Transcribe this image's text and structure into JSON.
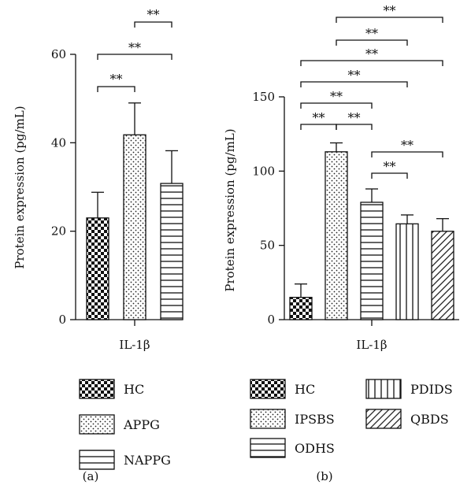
{
  "chart_data": [
    {
      "panel": "(a)",
      "type": "bar",
      "categories": [
        "HC",
        "APPG",
        "NAPPG"
      ],
      "values": [
        23,
        41.8,
        30.8
      ],
      "errors": [
        5.8,
        7.2,
        7.4
      ],
      "patterns": [
        "checker",
        "dots",
        "hlines"
      ],
      "ylim": [
        0,
        60
      ],
      "yticks": [
        0,
        20,
        40,
        60
      ],
      "ylabel": "Protein expression (pg/mL)",
      "xlabel": "IL-1β",
      "significance": [
        {
          "from": 0,
          "to": 1,
          "label": "**"
        },
        {
          "from": 0,
          "to": 2,
          "label": "**"
        },
        {
          "from": 1,
          "to": 2,
          "label": "**"
        }
      ],
      "legend": [
        "HC",
        "APPG",
        "NAPPG"
      ],
      "legend_placement": "below"
    },
    {
      "panel": "(b)",
      "type": "bar",
      "categories": [
        "HC",
        "IPSBS",
        "ODHS",
        "PDIDS",
        "QBDS"
      ],
      "values": [
        15,
        113,
        79,
        64.5,
        59.5
      ],
      "errors": [
        9,
        6,
        9,
        6,
        8.5
      ],
      "patterns": [
        "checker",
        "dots",
        "hlines",
        "vlines",
        "diag"
      ],
      "ylim": [
        0,
        150
      ],
      "yticks": [
        0,
        50,
        100,
        150
      ],
      "ylabel": "Protein expression (pg/mL)",
      "xlabel": "IL-1β",
      "significance": [
        {
          "from": 0,
          "to": 1,
          "label": "**"
        },
        {
          "from": 1,
          "to": 2,
          "label": "**"
        },
        {
          "from": 0,
          "to": 2,
          "label": "**"
        },
        {
          "from": 0,
          "to": 3,
          "label": "**"
        },
        {
          "from": 0,
          "to": 4,
          "label": "**"
        },
        {
          "from": 1,
          "to": 3,
          "label": "**"
        },
        {
          "from": 1,
          "to": 4,
          "label": "**"
        },
        {
          "from": 2,
          "to": 3,
          "label": "**"
        },
        {
          "from": 2,
          "to": 4,
          "label": "**"
        }
      ],
      "legend": [
        "HC",
        "IPSBS",
        "ODHS",
        "PDIDS",
        "QBDS"
      ],
      "legend_placement": "below"
    }
  ]
}
